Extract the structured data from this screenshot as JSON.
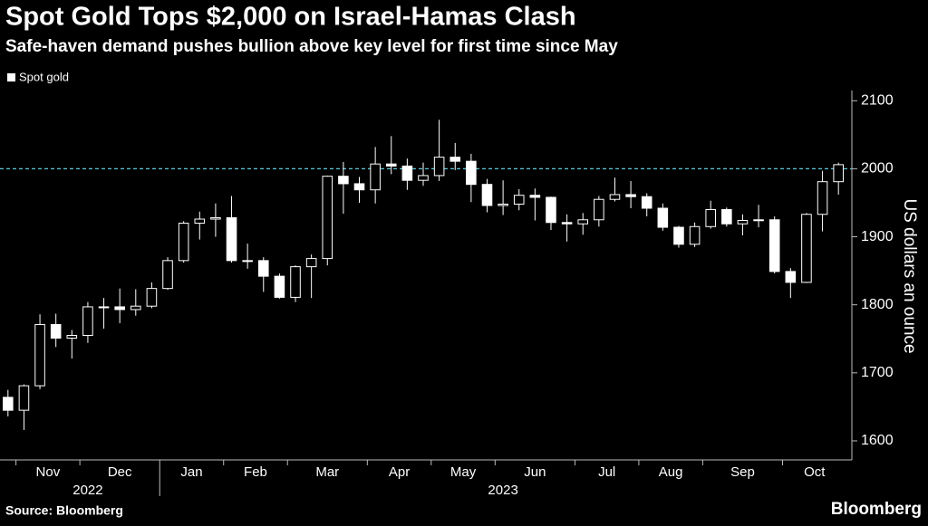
{
  "chart_data": {
    "type": "candlestick",
    "title": "Spot Gold Tops $2,000 on Israel-Hamas Clash",
    "subtitle": "Safe-haven demand pushes bullion above key level for first time since May",
    "y_label": "US dollars an ounce",
    "source": "Source: Bloomberg",
    "brand": "Bloomberg",
    "categories": [
      null,
      "Nov",
      null,
      null,
      null,
      "Dec",
      null,
      null,
      null,
      null,
      "Jan",
      null,
      null,
      null,
      "Feb",
      null,
      null,
      null,
      "Mar",
      null,
      null,
      null,
      null,
      "Apr",
      null,
      null,
      null,
      "May",
      null,
      null,
      null,
      "Jun",
      null,
      null,
      null,
      null,
      "Jul",
      null,
      null,
      null,
      "Aug",
      null,
      null,
      null,
      "Sep",
      null,
      null,
      null,
      null,
      "Oct",
      null,
      null,
      null
    ],
    "years": [
      "2022",
      "2023"
    ],
    "series": [
      {
        "name": "Spot gold",
        "color": "#ffffff",
        "open": [
          1664,
          1645,
          1681,
          1771,
          1751,
          1755,
          1797,
          1797,
          1793,
          1798,
          1824,
          1865,
          1920,
          1926,
          1928,
          1865,
          1865,
          1842,
          1811,
          1856,
          1868,
          1989,
          1978,
          1969,
          2007,
          2004,
          1983,
          1990,
          2017,
          2011,
          1977,
          1946,
          1948,
          1961,
          1958,
          1921,
          1919,
          1925,
          1955,
          1962,
          1959,
          1942,
          1914,
          1889,
          1915,
          1940,
          1919,
          1924,
          1925,
          1849,
          1833,
          1933,
          1981
        ],
        "high": [
          1675,
          1683,
          1786,
          1787,
          1763,
          1804,
          1810,
          1824,
          1823,
          1833,
          1870,
          1923,
          1937,
          1949,
          1960,
          1890,
          1870,
          1846,
          1858,
          1874,
          1990,
          2010,
          1988,
          2032,
          2048,
          2015,
          2009,
          2072,
          2038,
          2022,
          1985,
          1983,
          1970,
          1971,
          1959,
          1933,
          1935,
          1960,
          1987,
          1982,
          1964,
          1949,
          1916,
          1921,
          1953,
          1943,
          1933,
          1947,
          1930,
          1854,
          1935,
          1997,
          2009
        ],
        "low": [
          1636,
          1616,
          1676,
          1738,
          1721,
          1744,
          1765,
          1773,
          1784,
          1795,
          1822,
          1862,
          1896,
          1900,
          1862,
          1853,
          1819,
          1809,
          1804,
          1810,
          1858,
          1934,
          1950,
          1949,
          1992,
          1969,
          1975,
          1982,
          1998,
          1951,
          1936,
          1932,
          1939,
          1924,
          1910,
          1893,
          1903,
          1915,
          1952,
          1942,
          1930,
          1909,
          1884,
          1885,
          1912,
          1915,
          1902,
          1914,
          1846,
          1810,
          1832,
          1908,
          1962
        ],
        "close": [
          1645,
          1681,
          1771,
          1751,
          1755,
          1797,
          1797,
          1793,
          1798,
          1824,
          1865,
          1920,
          1926,
          1928,
          1865,
          1865,
          1842,
          1811,
          1856,
          1868,
          1989,
          1978,
          1969,
          2007,
          2004,
          1983,
          1990,
          2017,
          2011,
          1977,
          1946,
          1948,
          1961,
          1958,
          1921,
          1919,
          1925,
          1955,
          1962,
          1959,
          1942,
          1914,
          1889,
          1915,
          1940,
          1919,
          1924,
          1925,
          1849,
          1833,
          1933,
          1981,
          2006
        ]
      }
    ],
    "ylim": [
      1572,
      2115
    ],
    "yticks": [
      1600,
      1700,
      1800,
      1900,
      2000,
      2100
    ],
    "reference_line": 2000,
    "reference_color": "#5fc8d8"
  }
}
